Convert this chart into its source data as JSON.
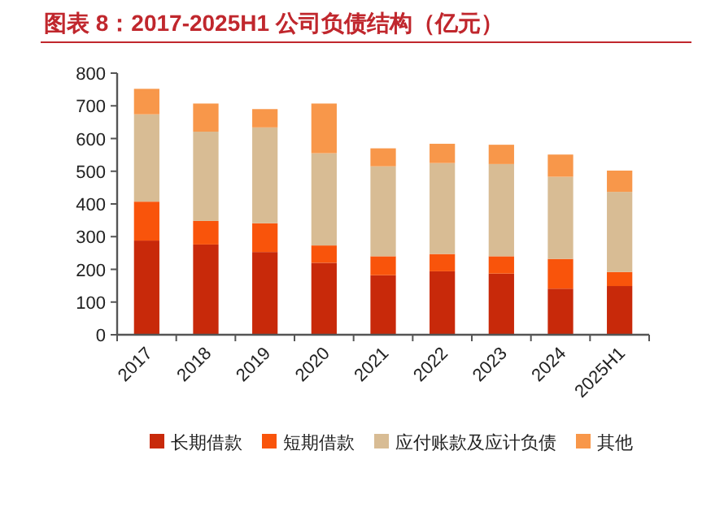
{
  "chart_data": {
    "type": "bar",
    "title": "图表 8：2017-2025H1 公司负债结构（亿元）",
    "stacked": true,
    "legend": "bottom",
    "grid": false,
    "categories": [
      "2017",
      "2018",
      "2019",
      "2020",
      "2021",
      "2022",
      "2023",
      "2024",
      "2025H1"
    ],
    "ylim": [
      0,
      800
    ],
    "yticks": [
      0,
      100,
      200,
      300,
      400,
      500,
      600,
      700,
      800
    ],
    "series": [
      {
        "name": "长期借款",
        "color": "#c8290a",
        "values": [
          288,
          276,
          253,
          220,
          182,
          194,
          187,
          141,
          149
        ]
      },
      {
        "name": "短期借款",
        "color": "#f9540b",
        "values": [
          119,
          72,
          88,
          53,
          58,
          53,
          53,
          91,
          43
        ]
      },
      {
        "name": "应付账款及应计负债",
        "color": "#d8bc94",
        "values": [
          267,
          273,
          293,
          282,
          275,
          278,
          282,
          251,
          245
        ]
      },
      {
        "name": "其他",
        "color": "#f8974a",
        "values": [
          78,
          86,
          56,
          152,
          55,
          59,
          59,
          68,
          65
        ]
      }
    ]
  }
}
